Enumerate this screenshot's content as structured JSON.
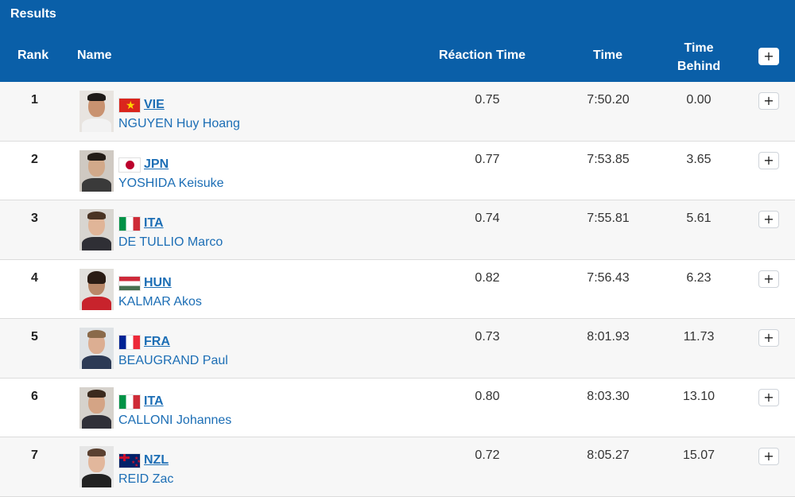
{
  "header": {
    "title": "Results",
    "columns": {
      "rank": "Rank",
      "name": "Name",
      "reaction": "Réaction Time",
      "time": "Time",
      "behind_line1": "Time",
      "behind_line2": "Behind"
    },
    "expand_all_label": "+"
  },
  "rows": [
    {
      "rank": "1",
      "nat": "VIE",
      "flag": "vietnam-flag-icon",
      "name": "NGUYEN Huy Hoang",
      "reaction": "0.75",
      "time": "7:50.20",
      "behind": "0.00",
      "expand": "+"
    },
    {
      "rank": "2",
      "nat": "JPN",
      "flag": "japan-flag-icon",
      "name": "YOSHIDA Keisuke",
      "reaction": "0.77",
      "time": "7:53.85",
      "behind": "3.65",
      "expand": "+"
    },
    {
      "rank": "3",
      "nat": "ITA",
      "flag": "italy-flag-icon",
      "name": "DE TULLIO Marco",
      "reaction": "0.74",
      "time": "7:55.81",
      "behind": "5.61",
      "expand": "+"
    },
    {
      "rank": "4",
      "nat": "HUN",
      "flag": "hungary-flag-icon",
      "name": "KALMAR Akos",
      "reaction": "0.82",
      "time": "7:56.43",
      "behind": "6.23",
      "expand": "+"
    },
    {
      "rank": "5",
      "nat": "FRA",
      "flag": "france-flag-icon",
      "name": "BEAUGRAND Paul",
      "reaction": "0.73",
      "time": "8:01.93",
      "behind": "11.73",
      "expand": "+"
    },
    {
      "rank": "6",
      "nat": "ITA",
      "flag": "italy-flag-icon",
      "name": "CALLONI Johannes",
      "reaction": "0.80",
      "time": "8:03.30",
      "behind": "13.10",
      "expand": "+"
    },
    {
      "rank": "7",
      "nat": "NZL",
      "flag": "new-zealand-flag-icon",
      "name": "REID Zac",
      "reaction": "0.72",
      "time": "8:05.27",
      "behind": "15.07",
      "expand": "+"
    }
  ],
  "colors": {
    "header_bg": "#0a5fa8",
    "link": "#1c6eb5",
    "row_alt": "#f7f7f7"
  }
}
